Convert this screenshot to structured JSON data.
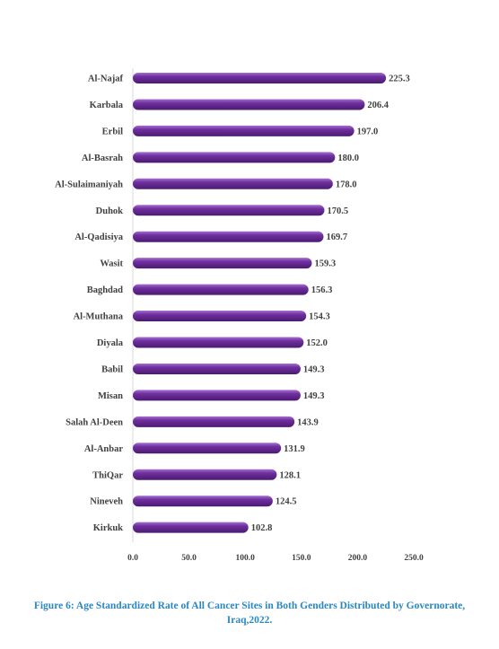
{
  "chart_data": {
    "type": "bar",
    "orientation": "horizontal",
    "categories": [
      "Al-Najaf",
      "Karbala",
      "Erbil",
      "Al-Basrah",
      "Al-Sulaimaniyah",
      "Duhok",
      "Al-Qadisiya",
      "Wasit",
      "Baghdad",
      "Al-Muthana",
      "Diyala",
      "Babil",
      "Misan",
      "Salah Al-Deen",
      "Al-Anbar",
      "ThiQar",
      "Nineveh",
      "Kirkuk"
    ],
    "values": [
      225.3,
      206.4,
      197.0,
      180.0,
      178.0,
      170.5,
      169.7,
      159.3,
      156.3,
      154.3,
      152.0,
      149.3,
      149.3,
      143.9,
      131.9,
      128.1,
      124.5,
      102.8
    ],
    "value_labels": [
      "225.3",
      "206.4",
      "197.0",
      "180.0",
      "178.0",
      "170.5",
      "169.7",
      "159.3",
      "156.3",
      "154.3",
      "152.0",
      "149.3",
      "149.3",
      "143.9",
      "131.9",
      "128.1",
      "124.5",
      "102.8"
    ],
    "xlim": [
      0,
      250
    ],
    "x_ticks": [
      0,
      50,
      100,
      150,
      200,
      250
    ],
    "x_tick_labels": [
      "0.0",
      "50.0",
      "100.0",
      "150.0",
      "200.0",
      "250.0"
    ],
    "grid": false,
    "legend": "none",
    "bar_color": "#7030a0",
    "title": "",
    "xlabel": "",
    "ylabel": ""
  },
  "caption": "Figure 6: Age Standardized Rate of All Cancer Sites in Both Genders Distributed by Governorate, Iraq,2022.",
  "colors": {
    "bar": "#7030a0",
    "bar_highlight": "#a66fd0",
    "bar_shadow": "#4b1a70",
    "caption": "#2b87c0",
    "text": "#404040"
  }
}
